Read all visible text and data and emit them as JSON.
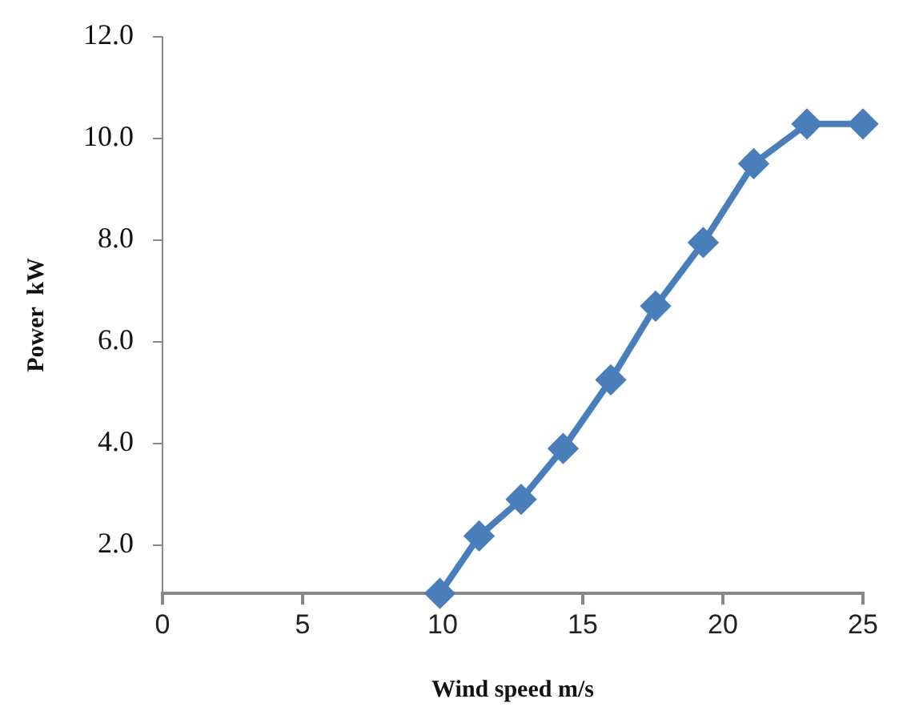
{
  "chart_data": {
    "type": "line",
    "xlabel": "Wind speed m/s",
    "ylabel": "Power  kW",
    "x": [
      9.9,
      11.3,
      12.8,
      14.3,
      16.0,
      17.6,
      19.3,
      21.1,
      23.0,
      25
    ],
    "series": [
      {
        "color": "#4a7ebb",
        "values": [
          1.05,
          2.18,
          2.9,
          3.9,
          5.25,
          6.7,
          7.95,
          9.5,
          10.28,
          10.28
        ]
      }
    ],
    "xlim": [
      0,
      25
    ],
    "xticks": [
      0,
      5,
      10,
      15,
      20,
      25
    ],
    "ylim": [
      1.05,
      12
    ],
    "yticks": [
      {
        "value": 2,
        "label": "2.0"
      },
      {
        "value": 4,
        "label": "4.0"
      },
      {
        "value": 6,
        "label": "6.0"
      },
      {
        "value": 8,
        "label": "8.0"
      },
      {
        "value": 10,
        "label": "10.0"
      },
      {
        "value": 12,
        "label": "12.0"
      }
    ],
    "grid": false,
    "legend": false,
    "marker": "diamond",
    "line_style": "solid"
  }
}
